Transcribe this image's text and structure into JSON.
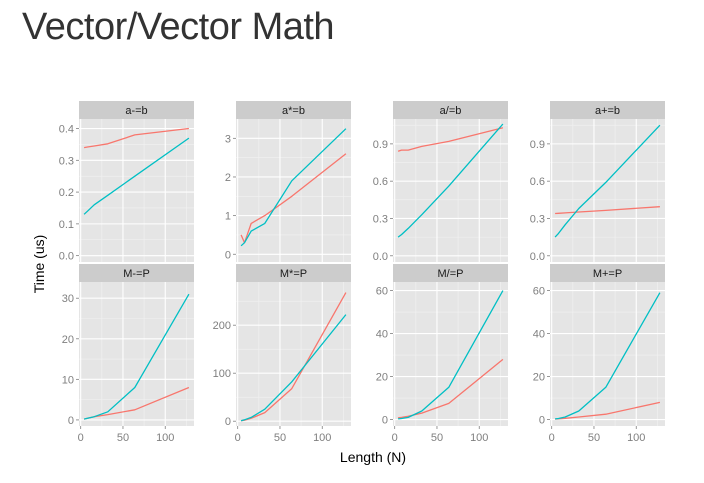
{
  "page": {
    "title": "Vector/Vector Math"
  },
  "colors": {
    "red": "#F8766D",
    "teal": "#00BFC4",
    "panel_bg": "#E5E5E5",
    "strip_bg": "#CCCCCC",
    "grid": "#ffffff",
    "text": "#7F7F7F"
  },
  "chart_data": {
    "type": "line",
    "xlabel": "Length (N)",
    "ylabel": "Time (us)",
    "x_ticks": [
      "0",
      "50",
      "100"
    ],
    "grid": true,
    "legend": "none",
    "panels": [
      {
        "label": "a-=b",
        "ylim": [
          -0.02,
          0.43
        ],
        "yticks": [
          0.0,
          0.1,
          0.2,
          0.3,
          0.4
        ],
        "ytick_labels": [
          "0.0",
          "0.1",
          "0.2",
          "0.3",
          "0.4"
        ],
        "series": [
          {
            "color": "#F8766D",
            "x": [
              4,
              8,
              16,
              32,
              64,
              128
            ],
            "y": [
              0.34,
              0.342,
              0.345,
              0.352,
              0.38,
              0.4
            ]
          },
          {
            "color": "#00BFC4",
            "x": [
              4,
              8,
              16,
              32,
              64,
              128
            ],
            "y": [
              0.13,
              0.14,
              0.16,
              0.19,
              0.25,
              0.37
            ]
          }
        ]
      },
      {
        "label": "a*=b",
        "ylim": [
          -0.2,
          3.5
        ],
        "yticks": [
          0,
          1,
          2,
          3
        ],
        "ytick_labels": [
          "0",
          "1",
          "2",
          "3"
        ],
        "series": [
          {
            "color": "#F8766D",
            "x": [
              4,
              8,
              16,
              32,
              64,
              128
            ],
            "y": [
              0.5,
              0.3,
              0.8,
              1.0,
              1.5,
              2.6
            ]
          },
          {
            "color": "#00BFC4",
            "x": [
              4,
              8,
              16,
              32,
              64,
              128
            ],
            "y": [
              0.22,
              0.3,
              0.6,
              0.8,
              1.9,
              3.25
            ]
          }
        ]
      },
      {
        "label": "a/=b",
        "ylim": [
          -0.05,
          1.1
        ],
        "yticks": [
          0.0,
          0.3,
          0.6,
          0.9
        ],
        "ytick_labels": [
          "0.0",
          "0.3",
          "0.6",
          "0.9"
        ],
        "series": [
          {
            "color": "#F8766D",
            "x": [
              4,
              8,
              16,
              32,
              64,
              128
            ],
            "y": [
              0.84,
              0.85,
              0.85,
              0.88,
              0.92,
              1.03
            ]
          },
          {
            "color": "#00BFC4",
            "x": [
              4,
              8,
              16,
              32,
              64,
              128
            ],
            "y": [
              0.15,
              0.17,
              0.22,
              0.33,
              0.56,
              1.06
            ]
          }
        ]
      },
      {
        "label": "a+=b",
        "ylim": [
          -0.05,
          1.1
        ],
        "yticks": [
          0.0,
          0.3,
          0.6,
          0.9
        ],
        "ytick_labels": [
          "0.0",
          "0.3",
          "0.6",
          "0.9"
        ],
        "series": [
          {
            "color": "#F8766D",
            "x": [
              4,
              8,
              16,
              32,
              64,
              128
            ],
            "y": [
              0.34,
              0.342,
              0.345,
              0.352,
              0.365,
              0.395
            ]
          },
          {
            "color": "#00BFC4",
            "x": [
              4,
              8,
              16,
              32,
              64,
              128
            ],
            "y": [
              0.15,
              0.18,
              0.25,
              0.38,
              0.59,
              1.05
            ]
          }
        ]
      },
      {
        "label": "M-=P",
        "ylim": [
          -1.5,
          34
        ],
        "yticks": [
          0,
          10,
          20,
          30
        ],
        "ytick_labels": [
          "0",
          "10",
          "20",
          "30"
        ],
        "series": [
          {
            "color": "#F8766D",
            "x": [
              4,
              8,
              16,
              32,
              64,
              128
            ],
            "y": [
              0.2,
              0.4,
              0.8,
              1.3,
              2.5,
              8.0
            ]
          },
          {
            "color": "#00BFC4",
            "x": [
              4,
              8,
              16,
              32,
              64,
              128
            ],
            "y": [
              0.2,
              0.4,
              0.8,
              2.0,
              8.0,
              31.0
            ]
          }
        ]
      },
      {
        "label": "M*=P",
        "ylim": [
          -10,
          290
        ],
        "yticks": [
          0,
          100,
          200
        ],
        "ytick_labels": [
          "0",
          "100",
          "200"
        ],
        "series": [
          {
            "color": "#F8766D",
            "x": [
              4,
              8,
              16,
              32,
              64,
              128
            ],
            "y": [
              1,
              2,
              6,
              18,
              68,
              268
            ]
          },
          {
            "color": "#00BFC4",
            "x": [
              4,
              8,
              16,
              32,
              64,
              128
            ],
            "y": [
              1,
              3,
              8,
              25,
              82,
              222
            ]
          }
        ]
      },
      {
        "label": "M/=P",
        "ylim": [
          -3,
          64
        ],
        "yticks": [
          0,
          20,
          40,
          60
        ],
        "ytick_labels": [
          "0",
          "20",
          "40",
          "60"
        ],
        "series": [
          {
            "color": "#F8766D",
            "x": [
              4,
              8,
              16,
              32,
              64,
              128
            ],
            "y": [
              0.8,
              1.0,
              1.5,
              3.0,
              7.5,
              28.0
            ]
          },
          {
            "color": "#00BFC4",
            "x": [
              4,
              8,
              16,
              32,
              64,
              128
            ],
            "y": [
              0.3,
              0.5,
              1.0,
              4.0,
              15.0,
              60.0
            ]
          }
        ]
      },
      {
        "label": "M+=P",
        "ylim": [
          -3,
          64
        ],
        "yticks": [
          0,
          20,
          40,
          60
        ],
        "ytick_labels": [
          "0",
          "20",
          "40",
          "60"
        ],
        "series": [
          {
            "color": "#F8766D",
            "x": [
              4,
              8,
              16,
              32,
              64,
              128
            ],
            "y": [
              0.2,
              0.3,
              0.6,
              1.2,
              2.5,
              8.0
            ]
          },
          {
            "color": "#00BFC4",
            "x": [
              4,
              8,
              16,
              32,
              64,
              128
            ],
            "y": [
              0.3,
              0.5,
              1.2,
              4.0,
              15.0,
              59.0
            ]
          }
        ]
      }
    ]
  }
}
